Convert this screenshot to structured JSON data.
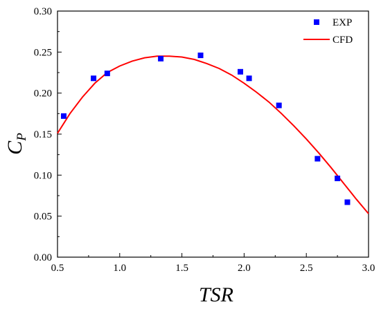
{
  "chart_data": {
    "type": "scatter",
    "xlabel": "TSR",
    "ylabel": {
      "main": "C",
      "sub": "P"
    },
    "xlim": [
      0.5,
      3.0
    ],
    "ylim": [
      0.0,
      0.3
    ],
    "xticks": [
      "0.5",
      "1.0",
      "1.5",
      "2.0",
      "2.5",
      "3.0"
    ],
    "yticks": [
      "0.00",
      "0.05",
      "0.10",
      "0.15",
      "0.20",
      "0.25",
      "0.30"
    ],
    "grid": false,
    "legend_position": "top-right",
    "series": [
      {
        "name": "EXP",
        "kind": "scatter",
        "color": "#0000ff",
        "marker": "square",
        "points": [
          [
            0.55,
            0.172
          ],
          [
            0.79,
            0.218
          ],
          [
            0.9,
            0.224
          ],
          [
            1.33,
            0.242
          ],
          [
            1.65,
            0.246
          ],
          [
            1.97,
            0.226
          ],
          [
            2.04,
            0.218
          ],
          [
            2.28,
            0.185
          ],
          [
            2.59,
            0.12
          ],
          [
            2.75,
            0.096
          ],
          [
            2.83,
            0.067
          ]
        ]
      },
      {
        "name": "CFD",
        "kind": "line",
        "color": "#ff0000",
        "points": [
          [
            0.5,
            0.151
          ],
          [
            0.6,
            0.175
          ],
          [
            0.7,
            0.195
          ],
          [
            0.8,
            0.212
          ],
          [
            0.9,
            0.225
          ],
          [
            1.0,
            0.233
          ],
          [
            1.1,
            0.239
          ],
          [
            1.2,
            0.243
          ],
          [
            1.3,
            0.245
          ],
          [
            1.4,
            0.245
          ],
          [
            1.5,
            0.244
          ],
          [
            1.6,
            0.241
          ],
          [
            1.7,
            0.236
          ],
          [
            1.8,
            0.23
          ],
          [
            1.9,
            0.222
          ],
          [
            2.0,
            0.212
          ],
          [
            2.1,
            0.201
          ],
          [
            2.2,
            0.189
          ],
          [
            2.3,
            0.175
          ],
          [
            2.4,
            0.16
          ],
          [
            2.5,
            0.144
          ],
          [
            2.6,
            0.127
          ],
          [
            2.7,
            0.109
          ],
          [
            2.8,
            0.09
          ],
          [
            2.9,
            0.071
          ],
          [
            3.0,
            0.053
          ]
        ]
      }
    ]
  }
}
